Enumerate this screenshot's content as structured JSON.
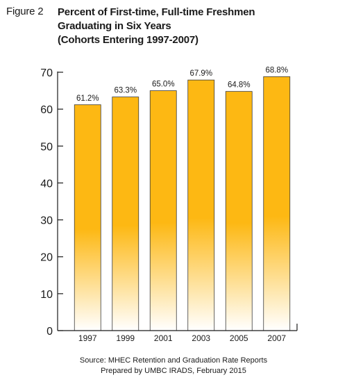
{
  "figure": {
    "label": "Figure 2",
    "title_lines": [
      "Percent of First-time, Full-time Freshmen",
      "Graduating in Six Years",
      "(Cohorts Entering 1997-2007)"
    ]
  },
  "source": {
    "lines": [
      "Source: MHEC Retention and Graduation Rate Reports",
      "Prepared by UMBC IRADS, February 2015"
    ]
  },
  "chart_data": {
    "type": "bar",
    "categories": [
      "1997",
      "1999",
      "2001",
      "2003",
      "2005",
      "2007"
    ],
    "values": [
      61.2,
      63.3,
      65.0,
      67.9,
      64.8,
      68.8
    ],
    "data_labels": [
      "61.2%",
      "63.3%",
      "65.0%",
      "67.9%",
      "64.8%",
      "68.8%"
    ],
    "ylim": [
      0,
      70
    ],
    "yticks": [
      0,
      10,
      20,
      30,
      40,
      50,
      60,
      70
    ],
    "xlabel": "",
    "ylabel": "",
    "grid": false,
    "colors": {
      "bar_top": "#fdb813",
      "bar_bottom": "#ffffff",
      "bar_edge": "#3a3a3a",
      "axis": "#1a1a1a"
    }
  }
}
